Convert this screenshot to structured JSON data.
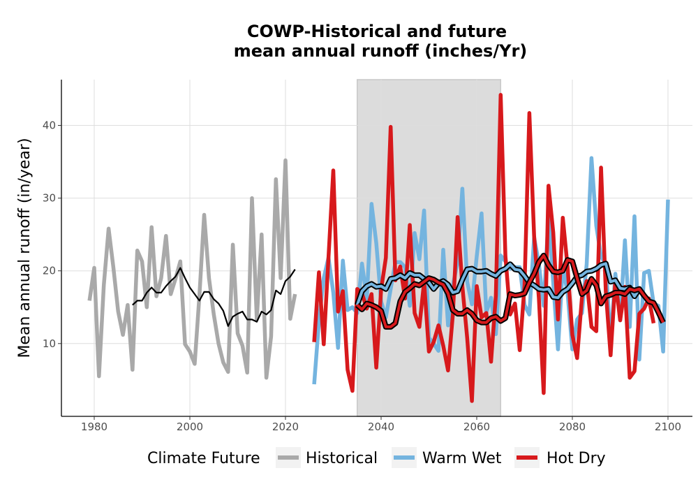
{
  "chart_data": {
    "type": "line",
    "title": "COWP-Historical and future",
    "subtitle": "mean annual runoff (inches/Yr)",
    "xlabel": "",
    "ylabel": "Mean annual runoff (in/year)",
    "xlim": [
      1973,
      2105
    ],
    "ylim": [
      1,
      46
    ],
    "x_ticks": [
      1980,
      2000,
      2020,
      2040,
      2060,
      2080,
      2100
    ],
    "y_ticks": [
      10,
      20,
      30,
      40
    ],
    "grid": true,
    "shaded_period": [
      2035,
      2065
    ],
    "legend": {
      "title": "Climate Future",
      "position": "bottom",
      "entries": [
        "Historical",
        "Warm Wet",
        "Hot Dry"
      ]
    },
    "colors": {
      "historical": "#a9a9a9",
      "warm_wet": "#74b4df",
      "hot_dry": "#d7191c",
      "smooth_outline": "#000000",
      "shade": "#dcdcdc",
      "grid": "#dedede"
    },
    "series": [
      {
        "name": "Historical",
        "x_start": 1979,
        "values": [
          15.9,
          20.4,
          5.5,
          18.0,
          25.8,
          20.5,
          14.4,
          11.2,
          15.3,
          6.4,
          22.8,
          21.3,
          15.0,
          26.0,
          16.5,
          19.0,
          24.8,
          16.8,
          18.9,
          21.3,
          9.9,
          8.9,
          7.2,
          16.6,
          27.7,
          19.0,
          14.0,
          10.0,
          7.4,
          6.1,
          23.6,
          11.4,
          9.7,
          6.0,
          30.0,
          13.3,
          25.0,
          5.3,
          11.0,
          32.6,
          19.0,
          35.2,
          13.4,
          16.8
        ]
      },
      {
        "name": "Warm Wet",
        "x_start": 2026,
        "values": [
          4.4,
          13.0,
          19.0,
          21.8,
          17.0,
          9.4,
          21.4,
          14.6,
          15.0,
          14.2,
          21.0,
          16.2,
          29.2,
          23.8,
          15.8,
          13.6,
          17.5,
          21.2,
          21.2,
          20.5,
          15.2,
          25.2,
          21.6,
          28.3,
          10.8,
          10.0,
          9.0,
          22.9,
          12.5,
          18.0,
          21.2,
          31.3,
          18.5,
          15.4,
          22.0,
          27.9,
          14.3,
          16.3,
          11.3,
          22.1,
          21.3,
          20.3,
          20.5,
          20.5,
          15.3,
          14.0,
          24.6,
          21.0,
          15.2,
          27.5,
          18.4,
          9.2,
          20.6,
          17.0,
          9.2,
          13.3,
          14.2,
          20.9,
          35.5,
          26.2,
          21.9,
          21.0,
          10.0,
          19.6,
          13.2,
          24.2,
          12.3,
          27.5,
          7.8,
          19.7,
          20.0,
          15.5,
          15.2,
          8.9,
          29.8
        ]
      },
      {
        "name": "Hot Dry",
        "x_start": 2026,
        "values": [
          10.2,
          19.8,
          9.9,
          21.8,
          33.8,
          14.4,
          17.2,
          6.4,
          3.5,
          17.5,
          16.9,
          14.8,
          16.8,
          6.7,
          17.4,
          21.8,
          39.8,
          18.7,
          20.6,
          16.2,
          26.3,
          14.2,
          12.3,
          18.5,
          8.9,
          10.2,
          12.5,
          9.7,
          6.3,
          14.0,
          27.4,
          17.9,
          10.8,
          2.1,
          17.9,
          13.6,
          14.2,
          7.5,
          16.6,
          44.2,
          22.0,
          14.0,
          15.5,
          9.1,
          18.0,
          41.7,
          24.8,
          16.3,
          3.2,
          31.7,
          25.3,
          13.3,
          27.3,
          20.6,
          11.2,
          8.0,
          16.3,
          18.6,
          12.3,
          11.7,
          34.2,
          17.2,
          8.4,
          18.7,
          13.2,
          17.8,
          5.3,
          6.2,
          14.1,
          14.8,
          16.2,
          12.8
        ]
      },
      {
        "name": "",
        "x_start": 1988,
        "values": [
          15.3,
          15.9,
          15.9,
          17.0,
          17.7,
          17.0,
          17.0,
          17.9,
          18.6,
          19.2,
          20.4,
          19.0,
          17.7,
          16.8,
          15.9,
          17.1,
          17.1,
          16.1,
          15.5,
          14.5,
          12.4,
          13.7,
          14.1,
          14.4,
          13.3,
          13.3,
          13.0,
          14.4,
          14.0,
          14.6,
          17.3,
          16.8,
          18.6,
          19.2,
          20.2
        ]
      },
      {
        "name": "",
        "x_start": 2035,
        "values": [
          15.3,
          17.2,
          17.9,
          18.2,
          17.8,
          17.9,
          17.5,
          18.9,
          19.0,
          19.4,
          19.0,
          19.7,
          19.4,
          19.4,
          18.9,
          18.4,
          17.5,
          18.3,
          18.6,
          18.1,
          17.0,
          17.2,
          18.8,
          20.2,
          20.3,
          19.9,
          19.9,
          20.0,
          19.6,
          19.3,
          20.0,
          20.3,
          20.9,
          20.2,
          20.1,
          19.3,
          18.4,
          18.0,
          17.5,
          17.4,
          17.5,
          16.4,
          16.3,
          17.1,
          17.5,
          18.3,
          19.2,
          19.4,
          19.9,
          20.0,
          20.3,
          20.8,
          21.0,
          18.5,
          18.7,
          17.6,
          17.5,
          17.7,
          16.5,
          17.5
        ]
      },
      {
        "name": "",
        "x_start": 2035,
        "values": [
          15.3,
          14.7,
          15.5,
          15.3,
          15.0,
          14.5,
          12.3,
          12.3,
          12.8,
          15.8,
          17.1,
          17.6,
          18.2,
          18.0,
          18.5,
          19.0,
          18.8,
          18.4,
          18.1,
          16.9,
          14.6,
          14.1,
          14.1,
          14.6,
          14.1,
          13.2,
          12.9,
          12.9,
          13.5,
          13.7,
          13.1,
          13.5,
          16.8,
          16.6,
          16.7,
          16.9,
          18.4,
          19.6,
          21.2,
          22.1,
          20.8,
          19.9,
          19.8,
          20.0,
          21.5,
          21.3,
          19.0,
          16.8,
          17.3,
          18.9,
          18.0,
          15.5,
          16.5,
          16.7,
          17.0,
          17.0,
          16.8,
          17.5,
          17.3,
          17.5,
          16.6,
          15.8,
          15.6,
          14.3,
          12.9
        ]
      }
    ]
  }
}
